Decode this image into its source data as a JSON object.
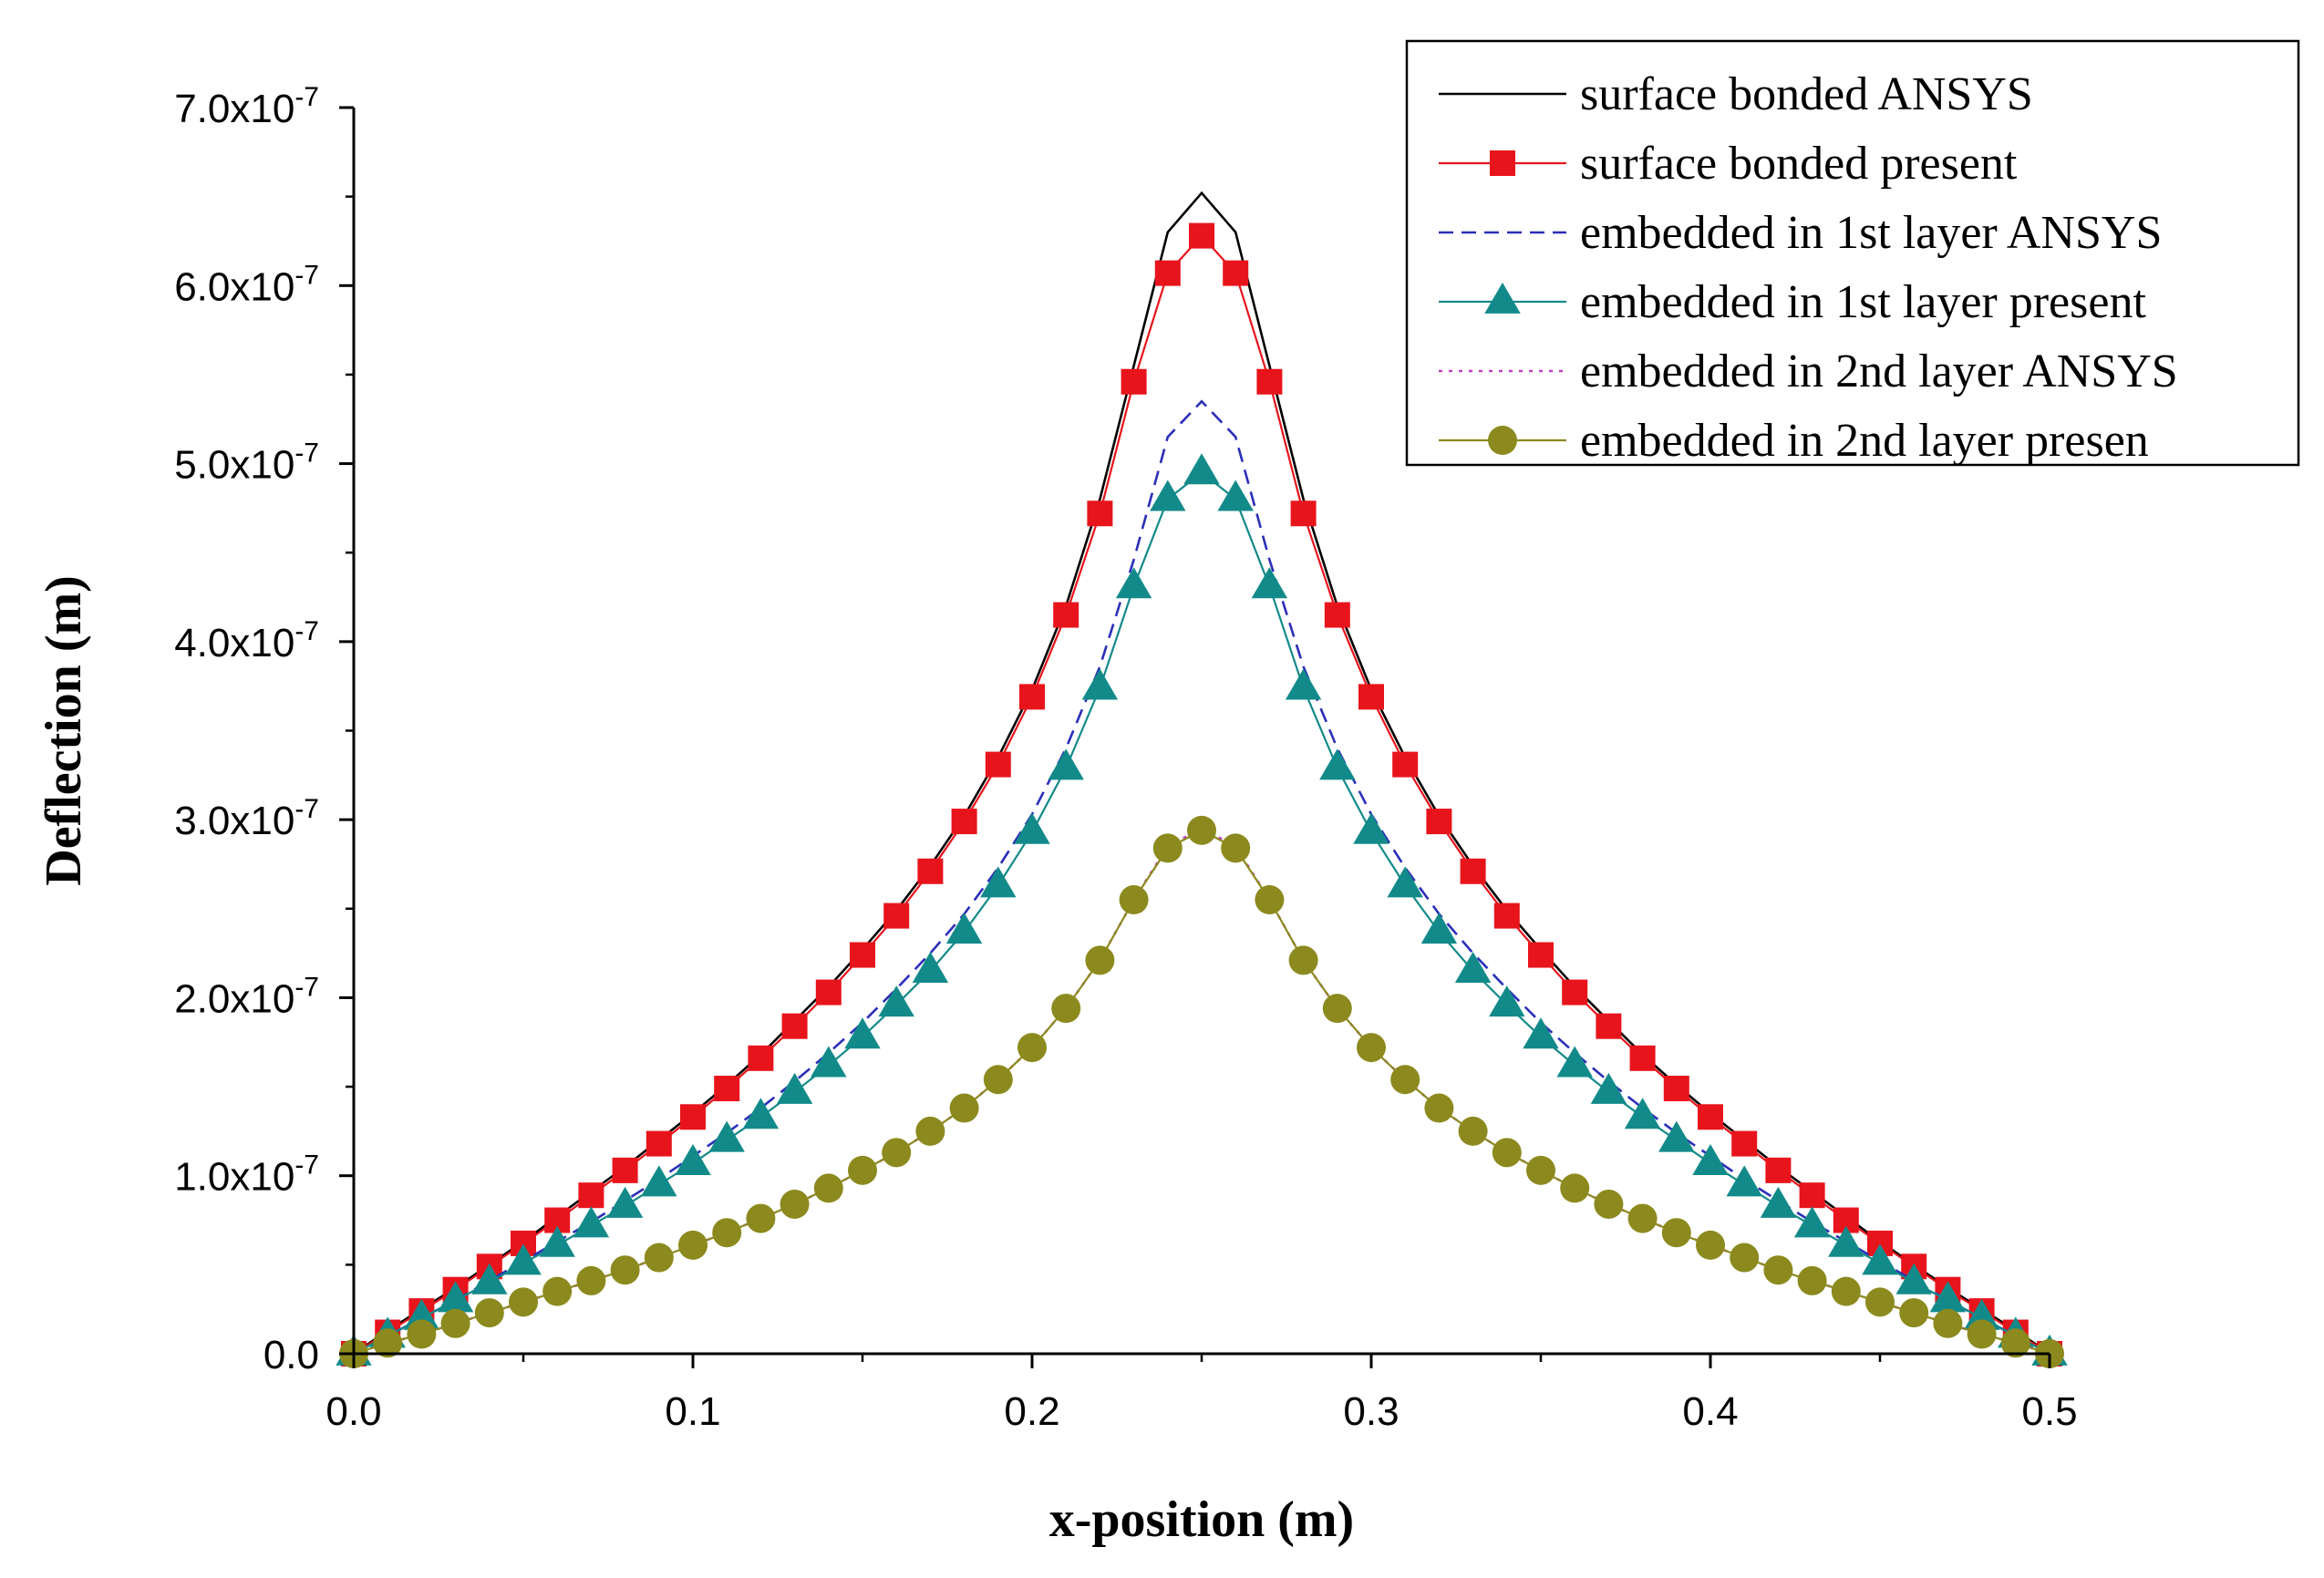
{
  "chart_data": {
    "type": "line",
    "title": "",
    "xlabel": "x-position (m)",
    "ylabel": "Deflection (m)",
    "xlim": [
      0.0,
      0.5
    ],
    "ylim": [
      0.0,
      7e-07
    ],
    "x_ticks": [
      {
        "value": 0.0,
        "label": "0.0"
      },
      {
        "value": 0.1,
        "label": "0.1"
      },
      {
        "value": 0.2,
        "label": "0.2"
      },
      {
        "value": 0.3,
        "label": "0.3"
      },
      {
        "value": 0.4,
        "label": "0.4"
      },
      {
        "value": 0.5,
        "label": "0.5"
      }
    ],
    "y_ticks": [
      {
        "value": 0.0,
        "label": "0.0",
        "exp": ""
      },
      {
        "value": 1e-07,
        "label": "1.0x10",
        "exp": "-7"
      },
      {
        "value": 2e-07,
        "label": "2.0x10",
        "exp": "-7"
      },
      {
        "value": 3e-07,
        "label": "3.0x10",
        "exp": "-7"
      },
      {
        "value": 4e-07,
        "label": "4.0x10",
        "exp": "-7"
      },
      {
        "value": 5e-07,
        "label": "5.0x10",
        "exp": "-7"
      },
      {
        "value": 6e-07,
        "label": "6.0x10",
        "exp": "-7"
      },
      {
        "value": 7e-07,
        "label": "7.0x10",
        "exp": "-7"
      }
    ],
    "grid": false,
    "legend_position": "top-right",
    "x": [
      0.0,
      0.01,
      0.02,
      0.03,
      0.04,
      0.05,
      0.06,
      0.07,
      0.08,
      0.09,
      0.1,
      0.11,
      0.12,
      0.13,
      0.14,
      0.15,
      0.16,
      0.17,
      0.18,
      0.19,
      0.2,
      0.21,
      0.22,
      0.23,
      0.24,
      0.25,
      0.26,
      0.27,
      0.28,
      0.29,
      0.3,
      0.31,
      0.32,
      0.33,
      0.34,
      0.35,
      0.36,
      0.37,
      0.38,
      0.39,
      0.4,
      0.41,
      0.42,
      0.43,
      0.44,
      0.45,
      0.46,
      0.47,
      0.48,
      0.49,
      0.5
    ],
    "series": [
      {
        "name": "surface bonded ANSYS",
        "color": "#000000",
        "line": "solid",
        "marker": "none",
        "values": [
          0.0,
          1.3e-08,
          2.5e-08,
          3.7e-08,
          5e-08,
          6.3e-08,
          7.7e-08,
          9.1e-08,
          1.05e-07,
          1.2e-07,
          1.35e-07,
          1.51e-07,
          1.68e-07,
          1.87e-07,
          2.06e-07,
          2.27e-07,
          2.49e-07,
          2.74e-07,
          3.02e-07,
          3.35e-07,
          3.73e-07,
          4.2e-07,
          4.8e-07,
          5.55e-07,
          6.3e-07,
          6.52e-07,
          6.3e-07,
          5.55e-07,
          4.8e-07,
          4.2e-07,
          3.73e-07,
          3.35e-07,
          3.02e-07,
          2.74e-07,
          2.49e-07,
          2.27e-07,
          2.06e-07,
          1.87e-07,
          1.68e-07,
          1.51e-07,
          1.35e-07,
          1.2e-07,
          1.05e-07,
          9.1e-08,
          7.7e-08,
          6.3e-08,
          5e-08,
          3.7e-08,
          2.5e-08,
          1.3e-08,
          0.0
        ]
      },
      {
        "name": "surface bonded present",
        "color": "#e8141c",
        "line": "solid",
        "marker": "square",
        "values": [
          0.0,
          1.2e-08,
          2.4e-08,
          3.6e-08,
          4.9e-08,
          6.2e-08,
          7.5e-08,
          8.9e-08,
          1.03e-07,
          1.18e-07,
          1.33e-07,
          1.49e-07,
          1.66e-07,
          1.84e-07,
          2.03e-07,
          2.24e-07,
          2.46e-07,
          2.71e-07,
          2.99e-07,
          3.31e-07,
          3.69e-07,
          4.15e-07,
          4.72e-07,
          5.46e-07,
          6.07e-07,
          6.28e-07,
          6.07e-07,
          5.46e-07,
          4.72e-07,
          4.15e-07,
          3.69e-07,
          3.31e-07,
          2.99e-07,
          2.71e-07,
          2.46e-07,
          2.24e-07,
          2.03e-07,
          1.84e-07,
          1.66e-07,
          1.49e-07,
          1.33e-07,
          1.18e-07,
          1.03e-07,
          8.9e-08,
          7.5e-08,
          6.2e-08,
          4.9e-08,
          3.6e-08,
          2.4e-08,
          1.2e-08,
          0.0
        ]
      },
      {
        "name": "embedded in 1st layer ANSYS",
        "color": "#2b2fb8",
        "line": "dashed",
        "marker": "none",
        "values": [
          0.0,
          1e-08,
          2e-08,
          3e-08,
          4.1e-08,
          5.2e-08,
          6.3e-08,
          7.4e-08,
          8.6e-08,
          9.8e-08,
          1.11e-07,
          1.24e-07,
          1.38e-07,
          1.53e-07,
          1.69e-07,
          1.86e-07,
          2.05e-07,
          2.25e-07,
          2.47e-07,
          2.73e-07,
          3.03e-07,
          3.4e-07,
          3.86e-07,
          4.46e-07,
          5.15e-07,
          5.35e-07,
          5.15e-07,
          4.46e-07,
          3.86e-07,
          3.4e-07,
          3.03e-07,
          2.73e-07,
          2.47e-07,
          2.25e-07,
          2.05e-07,
          1.86e-07,
          1.69e-07,
          1.53e-07,
          1.38e-07,
          1.24e-07,
          1.11e-07,
          9.8e-08,
          8.6e-08,
          7.4e-08,
          6.3e-08,
          5.2e-08,
          4.1e-08,
          3e-08,
          2e-08,
          1e-08,
          0.0
        ]
      },
      {
        "name": "embedded in 1st layer present",
        "color": "#138a8a",
        "line": "solid",
        "marker": "triangle",
        "values": [
          0.0,
          1e-08,
          2e-08,
          3e-08,
          4e-08,
          5.1e-08,
          6.1e-08,
          7.2e-08,
          8.3e-08,
          9.5e-08,
          1.07e-07,
          1.2e-07,
          1.33e-07,
          1.47e-07,
          1.62e-07,
          1.78e-07,
          1.96e-07,
          2.15e-07,
          2.37e-07,
          2.63e-07,
          2.93e-07,
          3.29e-07,
          3.74e-07,
          4.31e-07,
          4.8e-07,
          4.95e-07,
          4.8e-07,
          4.31e-07,
          3.74e-07,
          3.29e-07,
          2.93e-07,
          2.63e-07,
          2.37e-07,
          2.15e-07,
          1.96e-07,
          1.78e-07,
          1.62e-07,
          1.47e-07,
          1.33e-07,
          1.2e-07,
          1.07e-07,
          9.5e-08,
          8.3e-08,
          7.2e-08,
          6.1e-08,
          5.1e-08,
          4e-08,
          3e-08,
          2e-08,
          1e-08,
          0.0
        ]
      },
      {
        "name": "embedded in 2nd layer ANSYS",
        "color": "#c040c0",
        "line": "dotted",
        "marker": "none",
        "values": [
          0.0,
          6e-09,
          1.1e-08,
          1.7e-08,
          2.3e-08,
          2.9e-08,
          3.5e-08,
          4.1e-08,
          4.7e-08,
          5.4e-08,
          6.1e-08,
          6.8e-08,
          7.6e-08,
          8.4e-08,
          9.3e-08,
          1.03e-07,
          1.13e-07,
          1.25e-07,
          1.38e-07,
          1.54e-07,
          1.72e-07,
          1.94e-07,
          2.21e-07,
          2.55e-07,
          2.85e-07,
          2.95e-07,
          2.85e-07,
          2.55e-07,
          2.21e-07,
          1.94e-07,
          1.72e-07,
          1.54e-07,
          1.38e-07,
          1.25e-07,
          1.13e-07,
          1.03e-07,
          9.3e-08,
          8.4e-08,
          7.6e-08,
          6.8e-08,
          6.1e-08,
          5.4e-08,
          4.7e-08,
          4.1e-08,
          3.5e-08,
          2.9e-08,
          2.3e-08,
          1.7e-08,
          1.1e-08,
          6e-09,
          0.0
        ]
      },
      {
        "name": "embedded in 2nd layer presen",
        "color": "#8c8a1e",
        "line": "solid",
        "marker": "circle",
        "values": [
          0.0,
          6e-09,
          1.1e-08,
          1.7e-08,
          2.3e-08,
          2.9e-08,
          3.5e-08,
          4.1e-08,
          4.7e-08,
          5.4e-08,
          6.1e-08,
          6.8e-08,
          7.6e-08,
          8.4e-08,
          9.3e-08,
          1.03e-07,
          1.13e-07,
          1.25e-07,
          1.38e-07,
          1.54e-07,
          1.72e-07,
          1.94e-07,
          2.21e-07,
          2.55e-07,
          2.84e-07,
          2.94e-07,
          2.84e-07,
          2.55e-07,
          2.21e-07,
          1.94e-07,
          1.72e-07,
          1.54e-07,
          1.38e-07,
          1.25e-07,
          1.13e-07,
          1.03e-07,
          9.3e-08,
          8.4e-08,
          7.6e-08,
          6.8e-08,
          6.1e-08,
          5.4e-08,
          4.7e-08,
          4.1e-08,
          3.5e-08,
          2.9e-08,
          2.3e-08,
          1.7e-08,
          1.1e-08,
          6e-09,
          0.0
        ]
      }
    ]
  }
}
